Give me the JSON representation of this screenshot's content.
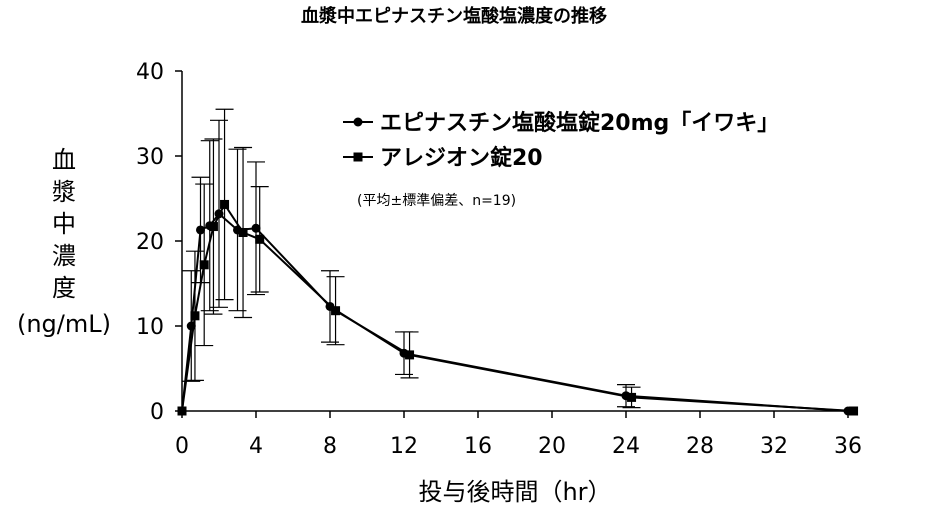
{
  "chart_data": {
    "type": "line",
    "title": "血漿中エピナスチン塩酸塩濃度の推移",
    "xlabel": "投与後時間（hr）",
    "ylabel_lines": [
      "血",
      "漿",
      "中",
      "濃",
      "度",
      "(ng/mL)"
    ],
    "xlim": [
      0,
      36
    ],
    "ylim": [
      0,
      40
    ],
    "xticks": [
      0,
      4,
      8,
      12,
      16,
      20,
      24,
      28,
      32,
      36
    ],
    "yticks": [
      0,
      10,
      20,
      30,
      40
    ],
    "grid": false,
    "legend_position": "top-right",
    "note": "(平均±標準偏差、n=19)",
    "series": [
      {
        "name": "エピナスチン塩酸塩錠20mg「イワキ」",
        "marker": "circle",
        "x": [
          0,
          0.5,
          1,
          1.5,
          2,
          3,
          4,
          8,
          12,
          24,
          36
        ],
        "y": [
          0,
          10,
          21.3,
          21.8,
          23.2,
          21.3,
          21.5,
          12.3,
          6.8,
          1.8,
          0
        ],
        "err": [
          0,
          6.5,
          6.2,
          10.0,
          11.0,
          9.5,
          7.8,
          4.2,
          2.5,
          1.3,
          0
        ]
      },
      {
        "name": "アレジオン錠20",
        "marker": "square",
        "x": [
          0,
          0.7,
          1.2,
          1.7,
          2.3,
          3.3,
          4.2,
          8.3,
          12.3,
          24.3,
          36.3
        ],
        "y": [
          0,
          11.2,
          17.2,
          21.7,
          24.3,
          21,
          20.2,
          11.8,
          6.6,
          1.6,
          0
        ],
        "err": [
          0,
          7.6,
          9.5,
          10.3,
          11.2,
          10.0,
          6.2,
          4.0,
          2.7,
          1.2,
          0
        ]
      }
    ]
  }
}
